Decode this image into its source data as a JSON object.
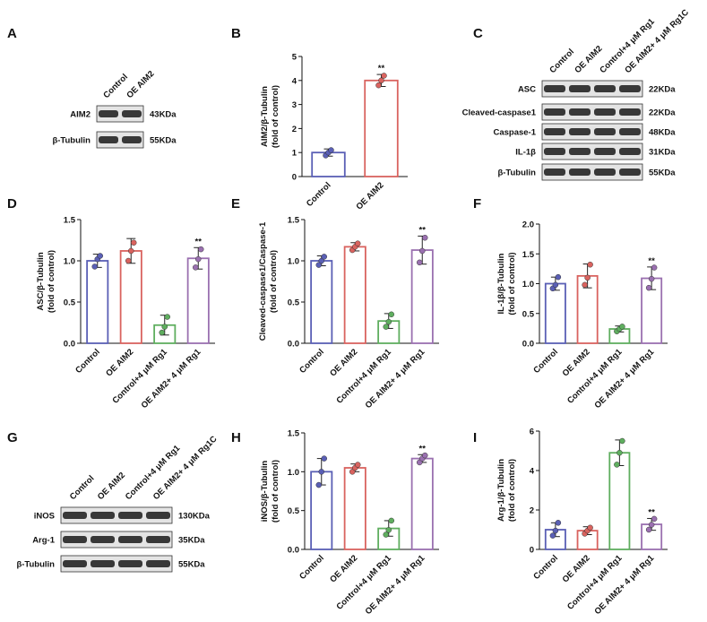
{
  "blots": [
    {
      "panel": "A",
      "lanes": [
        "Control",
        "OE AIM2"
      ],
      "rows": [
        {
          "protein": "AIM2",
          "size": "43KDa"
        },
        {
          "protein": "β-Tubulin",
          "size": "55KDa"
        }
      ]
    },
    {
      "panel": "C",
      "lanes": [
        "Control",
        "OE AIM2",
        "Control+4 μM Rg1",
        "OE AIM2+ 4 μM Rg1C"
      ],
      "rows": [
        {
          "protein": "ASC",
          "size": "22KDa"
        },
        {
          "protein": "Cleaved-caspase1",
          "size": "22KDa"
        },
        {
          "protein": "Caspase-1",
          "size": "48KDa"
        },
        {
          "protein": "IL-1β",
          "size": "31KDa"
        },
        {
          "protein": "β-Tubulin",
          "size": "55KDa"
        }
      ]
    },
    {
      "panel": "G",
      "lanes": [
        "Control",
        "OE AIM2",
        "Control+4 μM Rg1",
        "OE AIM2+ 4 μM Rg1C"
      ],
      "rows": [
        {
          "protein": "iNOS",
          "size": "130KDa"
        },
        {
          "protein": "Arg-1",
          "size": "35KDa"
        },
        {
          "protein": "β-Tubulin",
          "size": "55KDa"
        }
      ]
    }
  ],
  "chart_data": [
    {
      "type": "bar",
      "panel": "B",
      "ylabel": [
        "AIM2/β-Tubulin",
        "(fold of control)"
      ],
      "categories": [
        "Control",
        "OE AIM2"
      ],
      "values": [
        1.0,
        4.0
      ],
      "errors": [
        0.15,
        0.25
      ],
      "points": [
        [
          0.88,
          1.0,
          1.1
        ],
        [
          3.8,
          4.0,
          4.2
        ]
      ],
      "significance": [
        null,
        "**"
      ],
      "colors": [
        "#5a5fb5",
        "#d9635f"
      ],
      "ylim": [
        0,
        5
      ],
      "yticks": [
        0,
        1,
        2,
        3,
        4,
        5
      ]
    },
    {
      "type": "bar",
      "panel": "D",
      "ylabel": [
        "ASC/β-Tubulin",
        "(fold of control)"
      ],
      "categories": [
        "Control",
        "OE AIM2",
        "Control+4 μM Rg1",
        "OE AIM2+ 4 μM Rg1"
      ],
      "values": [
        1.0,
        1.12,
        0.22,
        1.03
      ],
      "errors": [
        0.08,
        0.15,
        0.12,
        0.13
      ],
      "points": [
        [
          0.93,
          1.02,
          1.06
        ],
        [
          1.0,
          1.12,
          1.22
        ],
        [
          0.13,
          0.2,
          0.32
        ],
        [
          0.92,
          1.02,
          1.14
        ]
      ],
      "significance": [
        null,
        null,
        null,
        "**"
      ],
      "colors": [
        "#5a5fb5",
        "#d9635f",
        "#5fae5f",
        "#9a70b0"
      ],
      "ylim": [
        0,
        1.5
      ],
      "yticks": [
        {
          "value": 0,
          "label": "0.0"
        },
        0.5,
        {
          "value": 1,
          "label": "1.0"
        },
        1.5
      ]
    },
    {
      "type": "bar",
      "panel": "E",
      "ylabel": [
        "Cleaved-caspase1/Caspase-1",
        "(fold of control)"
      ],
      "categories": [
        "Control",
        "OE AIM2",
        "Control+4 μM Rg1",
        "OE AIM2+ 4 μM Rg1"
      ],
      "values": [
        1.0,
        1.17,
        0.27,
        1.13
      ],
      "errors": [
        0.06,
        0.05,
        0.09,
        0.17
      ],
      "points": [
        [
          0.95,
          1.0,
          1.05
        ],
        [
          1.13,
          1.17,
          1.21
        ],
        [
          0.2,
          0.26,
          0.35
        ],
        [
          0.98,
          1.12,
          1.28
        ]
      ],
      "significance": [
        null,
        null,
        null,
        "**"
      ],
      "colors": [
        "#5a5fb5",
        "#d9635f",
        "#5fae5f",
        "#9a70b0"
      ],
      "ylim": [
        0,
        1.5
      ],
      "yticks": [
        {
          "value": 0,
          "label": "0.0"
        },
        0.5,
        {
          "value": 1,
          "label": "1.0"
        },
        1.5
      ]
    },
    {
      "type": "bar",
      "panel": "F",
      "ylabel": [
        "IL-1β/β-Tubulin",
        "(fold of control)"
      ],
      "categories": [
        "Control",
        "OE AIM2",
        "Control+4 μM Rg1",
        "OE AIM2+ 4 μM Rg1"
      ],
      "values": [
        1.0,
        1.13,
        0.24,
        1.09
      ],
      "errors": [
        0.11,
        0.2,
        0.05,
        0.19
      ],
      "points": [
        [
          0.92,
          0.98,
          1.11
        ],
        [
          0.98,
          1.1,
          1.32
        ],
        [
          0.2,
          0.24,
          0.28
        ],
        [
          0.93,
          1.08,
          1.27
        ]
      ],
      "significance": [
        null,
        null,
        null,
        "**"
      ],
      "colors": [
        "#5a5fb5",
        "#d9635f",
        "#5fae5f",
        "#9a70b0"
      ],
      "ylim": [
        0,
        2
      ],
      "yticks": [
        {
          "value": 0,
          "label": "0.0"
        },
        0.5,
        {
          "value": 1,
          "label": "1.0"
        },
        1.5,
        {
          "value": 2,
          "label": "2.0"
        }
      ]
    },
    {
      "type": "bar",
      "panel": "H",
      "ylabel": [
        "iNOS/β-Tubulin",
        "(fold of control)"
      ],
      "categories": [
        "Control",
        "OE AIM2",
        "Control+4 μM Rg1",
        "OE AIM2+ 4 μM Rg1"
      ],
      "values": [
        1.0,
        1.05,
        0.27,
        1.17
      ],
      "errors": [
        0.17,
        0.05,
        0.1,
        0.05
      ],
      "points": [
        [
          0.83,
          1.0,
          1.17
        ],
        [
          1.0,
          1.05,
          1.09
        ],
        [
          0.19,
          0.25,
          0.37
        ],
        [
          1.12,
          1.17,
          1.21
        ]
      ],
      "significance": [
        null,
        null,
        null,
        "**"
      ],
      "colors": [
        "#5a5fb5",
        "#d9635f",
        "#5fae5f",
        "#9a70b0"
      ],
      "ylim": [
        0,
        1.5
      ],
      "yticks": [
        {
          "value": 0,
          "label": "0.0"
        },
        0.5,
        {
          "value": 1,
          "label": "1.0"
        },
        1.5
      ]
    },
    {
      "type": "bar",
      "panel": "I",
      "ylabel": [
        "Arg-1/β-Tubulin",
        "(fold of control)"
      ],
      "categories": [
        "Control",
        "OE AIM2",
        "Control+4 μM Rg1",
        "OE AIM2+ 4 μM Rg1"
      ],
      "values": [
        1.0,
        0.95,
        4.9,
        1.27
      ],
      "errors": [
        0.35,
        0.2,
        0.65,
        0.3
      ],
      "points": [
        [
          0.7,
          0.95,
          1.35
        ],
        [
          0.8,
          0.95,
          1.1
        ],
        [
          4.3,
          4.9,
          5.5
        ],
        [
          1.0,
          1.25,
          1.55
        ]
      ],
      "significance": [
        null,
        null,
        null,
        "**"
      ],
      "colors": [
        "#5a5fb5",
        "#d9635f",
        "#5fae5f",
        "#9a70b0"
      ],
      "ylim": [
        0,
        6
      ],
      "yticks": [
        0,
        2,
        4,
        6
      ]
    }
  ]
}
